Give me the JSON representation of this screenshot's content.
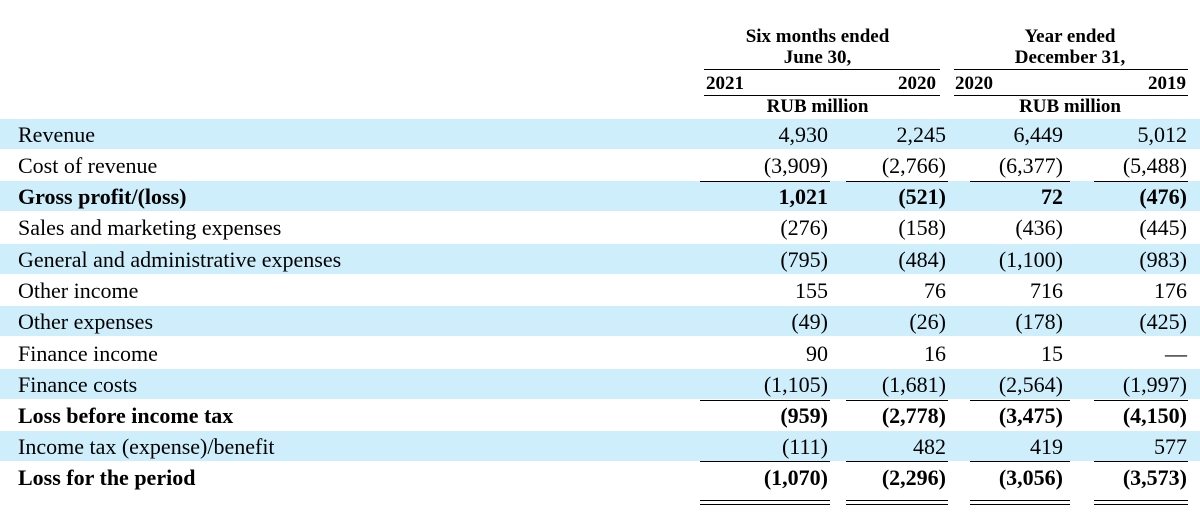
{
  "header": {
    "group1_title_line1": "Six months ended",
    "group1_title_line2": "June 30,",
    "group2_title_line1": "Year ended",
    "group2_title_line2": "December 31,",
    "col_2021": "2021",
    "col_2020a": "2020",
    "col_2020b": "2020",
    "col_2019": "2019",
    "unit1": "RUB million",
    "unit2": "RUB million"
  },
  "rows": [
    {
      "label": "Revenue",
      "values": [
        "4,930",
        "2,245",
        "6,449",
        "5,012"
      ],
      "bold": false
    },
    {
      "label": "Cost of revenue",
      "values": [
        "(3,909)",
        "(2,766)",
        "(6,377)",
        "(5,488)"
      ],
      "bold": false
    },
    {
      "label": "Gross profit/(loss)",
      "values": [
        "1,021",
        "(521)",
        "72",
        "(476)"
      ],
      "bold": true
    },
    {
      "label": "Sales and marketing expenses",
      "values": [
        "(276)",
        "(158)",
        "(436)",
        "(445)"
      ],
      "bold": false
    },
    {
      "label": "General and administrative expenses",
      "values": [
        "(795)",
        "(484)",
        "(1,100)",
        "(983)"
      ],
      "bold": false
    },
    {
      "label": "Other income",
      "values": [
        "155",
        "76",
        "716",
        "176"
      ],
      "bold": false
    },
    {
      "label": "Other expenses",
      "values": [
        "(49)",
        "(26)",
        "(178)",
        "(425)"
      ],
      "bold": false
    },
    {
      "label": "Finance income",
      "values": [
        "90",
        "16",
        "15",
        "—"
      ],
      "bold": false
    },
    {
      "label": "Finance costs",
      "values": [
        "(1,105)",
        "(1,681)",
        "(2,564)",
        "(1,997)"
      ],
      "bold": false
    },
    {
      "label": "Loss before income tax",
      "values": [
        "(959)",
        "(2,778)",
        "(3,475)",
        "(4,150)"
      ],
      "bold": true
    },
    {
      "label": "Income tax (expense)/benefit",
      "values": [
        "(111)",
        "482",
        "419",
        "577"
      ],
      "bold": false
    },
    {
      "label": "Loss for the period",
      "values": [
        "(1,070)",
        "(2,296)",
        "(3,056)",
        "(3,573)"
      ],
      "bold": true
    }
  ]
}
